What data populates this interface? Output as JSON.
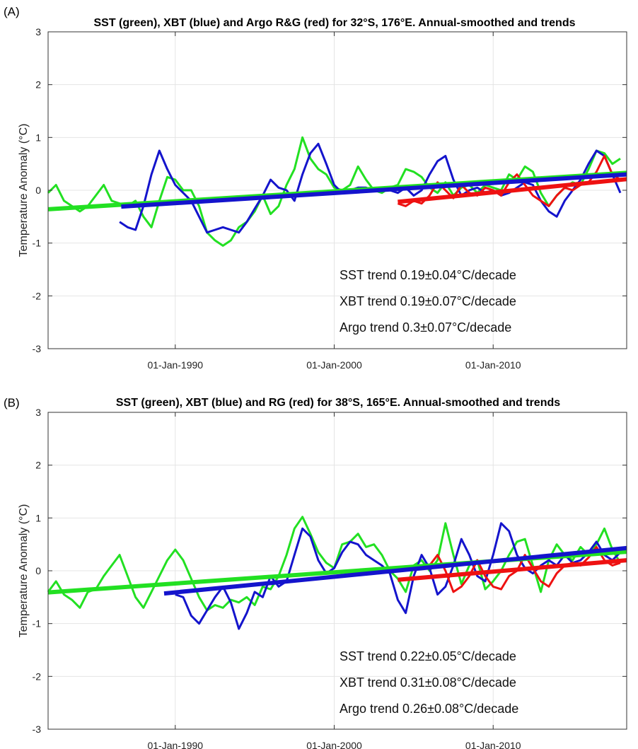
{
  "figure": {
    "background": "#ffffff"
  },
  "chart_data": [
    {
      "type": "line",
      "panel_label": "(A)",
      "title": "SST (green), XBT (blue) and Argo R&G (red) for 32°S, 176°E. Annual-smoothed and trends",
      "ylabel": "Temperature Anomaly (°C)",
      "xlabel": "",
      "xlim": [
        1982.0,
        2018.4
      ],
      "ylim": [
        -3,
        3
      ],
      "yticks": [
        -3,
        -2,
        -1,
        0,
        1,
        2,
        3
      ],
      "xticks": [
        {
          "year": 1990,
          "label": "01-Jan-1990"
        },
        {
          "year": 2000,
          "label": "01-Jan-2000"
        },
        {
          "year": 2010,
          "label": "01-Jan-2010"
        }
      ],
      "grid": true,
      "annotations": [
        "SST trend 0.19±0.04°C/decade",
        "XBT trend 0.19±0.07°C/decade",
        "Argo trend 0.3±0.07°C/decade"
      ],
      "series": [
        {
          "name": "SST",
          "color": "#22e022",
          "role": "anomaly",
          "x": [
            1982.0,
            1982.5,
            1983.0,
            1983.5,
            1984.0,
            1984.5,
            1985.0,
            1985.5,
            1986.0,
            1986.5,
            1987.0,
            1987.5,
            1988.0,
            1988.5,
            1989.0,
            1989.5,
            1990.0,
            1990.5,
            1991.0,
            1991.5,
            1992.0,
            1992.5,
            1993.0,
            1993.5,
            1994.0,
            1994.5,
            1995.0,
            1995.5,
            1996.0,
            1996.5,
            1997.0,
            1997.5,
            1998.0,
            1998.5,
            1999.0,
            1999.5,
            2000.0,
            2000.5,
            2001.0,
            2001.5,
            2002.0,
            2002.5,
            2003.0,
            2003.5,
            2004.0,
            2004.5,
            2005.0,
            2005.5,
            2006.0,
            2006.5,
            2007.0,
            2007.5,
            2008.0,
            2008.5,
            2009.0,
            2009.5,
            2010.0,
            2010.5,
            2011.0,
            2011.5,
            2012.0,
            2012.5,
            2013.0,
            2013.5,
            2014.0,
            2014.5,
            2015.0,
            2015.5,
            2016.0,
            2016.5,
            2017.0,
            2017.5,
            2018.0
          ],
          "y": [
            -0.05,
            0.1,
            -0.2,
            -0.3,
            -0.4,
            -0.3,
            -0.1,
            0.1,
            -0.2,
            -0.25,
            -0.3,
            -0.2,
            -0.5,
            -0.7,
            -0.2,
            0.25,
            0.2,
            0.0,
            0.0,
            -0.3,
            -0.8,
            -0.95,
            -1.05,
            -0.95,
            -0.7,
            -0.6,
            -0.4,
            -0.1,
            -0.45,
            -0.3,
            0.1,
            0.4,
            1.0,
            0.6,
            0.4,
            0.3,
            0.05,
            0.0,
            0.1,
            0.45,
            0.2,
            0.0,
            -0.05,
            0.05,
            0.1,
            0.4,
            0.35,
            0.25,
            0.05,
            -0.05,
            0.15,
            -0.1,
            0.05,
            0.1,
            -0.05,
            0.1,
            0.05,
            0.0,
            0.3,
            0.2,
            0.45,
            0.35,
            -0.05,
            -0.3,
            -0.1,
            0.05,
            0.15,
            0.1,
            0.4,
            0.75,
            0.7,
            0.5,
            0.6
          ]
        },
        {
          "name": "XBT",
          "color": "#1414cc",
          "role": "anomaly",
          "x": [
            1986.5,
            1987.0,
            1987.5,
            1988.0,
            1988.5,
            1989.0,
            1989.5,
            1990.0,
            1990.5,
            1991.0,
            1991.5,
            1992.0,
            1992.5,
            1993.0,
            1993.5,
            1994.0,
            1994.5,
            1995.0,
            1995.5,
            1996.0,
            1996.5,
            1997.0,
            1997.5,
            1998.0,
            1998.5,
            1999.0,
            1999.5,
            2000.0,
            2000.5,
            2001.0,
            2001.5,
            2002.0,
            2002.5,
            2003.0,
            2003.5,
            2004.0,
            2004.5,
            2005.0,
            2005.5,
            2006.0,
            2006.5,
            2007.0,
            2007.5,
            2008.0,
            2008.5,
            2009.0,
            2009.5,
            2010.0,
            2010.5,
            2011.0,
            2011.5,
            2012.0,
            2012.5,
            2013.0,
            2013.5,
            2014.0,
            2014.5,
            2015.0,
            2015.5,
            2016.0,
            2016.5,
            2017.0,
            2017.5,
            2018.0
          ],
          "y": [
            -0.6,
            -0.7,
            -0.75,
            -0.3,
            0.3,
            0.75,
            0.4,
            0.1,
            -0.05,
            -0.2,
            -0.5,
            -0.8,
            -0.75,
            -0.7,
            -0.75,
            -0.8,
            -0.6,
            -0.35,
            -0.1,
            0.2,
            0.05,
            0.0,
            -0.2,
            0.3,
            0.7,
            0.88,
            0.5,
            0.1,
            -0.05,
            0.0,
            0.05,
            0.05,
            0.0,
            0.05,
            0.0,
            -0.05,
            0.05,
            -0.1,
            0.0,
            0.3,
            0.55,
            0.65,
            0.2,
            -0.1,
            0.0,
            0.05,
            -0.05,
            0.0,
            -0.1,
            -0.05,
            0.05,
            0.15,
            0.1,
            -0.2,
            -0.4,
            -0.5,
            -0.2,
            0.0,
            0.2,
            0.5,
            0.75,
            0.65,
            0.3,
            -0.05
          ]
        },
        {
          "name": "Argo R&G",
          "color": "#ee1111",
          "role": "anomaly",
          "x": [
            2004.0,
            2004.5,
            2005.0,
            2005.5,
            2006.0,
            2006.5,
            2007.0,
            2007.5,
            2008.0,
            2008.5,
            2009.0,
            2009.5,
            2010.0,
            2010.5,
            2011.0,
            2011.5,
            2012.0,
            2012.5,
            2013.0,
            2013.5,
            2014.0,
            2014.5,
            2015.0,
            2015.5,
            2016.0,
            2016.5,
            2017.0,
            2017.5,
            2018.0
          ],
          "y": [
            -0.25,
            -0.3,
            -0.2,
            -0.25,
            -0.1,
            0.15,
            0.0,
            -0.15,
            0.1,
            -0.05,
            -0.1,
            0.05,
            0.0,
            -0.1,
            0.15,
            0.3,
            0.1,
            -0.1,
            -0.2,
            -0.3,
            -0.1,
            0.05,
            0.0,
            0.1,
            0.15,
            0.35,
            0.65,
            0.3,
            0.2
          ]
        },
        {
          "name": "SST trend",
          "color": "#22e022",
          "role": "trend",
          "x": [
            1982.0,
            2018.4
          ],
          "y": [
            -0.36,
            0.33
          ]
        },
        {
          "name": "XBT trend",
          "color": "#1414cc",
          "role": "trend",
          "x": [
            1986.6,
            2018.4
          ],
          "y": [
            -0.31,
            0.3
          ]
        },
        {
          "name": "Argo trend",
          "color": "#ee1111",
          "role": "trend",
          "x": [
            2004.0,
            2018.4
          ],
          "y": [
            -0.22,
            0.21
          ]
        }
      ]
    },
    {
      "type": "line",
      "panel_label": "(B)",
      "title": "SST (green), XBT (blue) and RG (red) for 38°S, 165°E. Annual-smoothed and trends",
      "ylabel": "Temperature Anomaly (°C)",
      "xlabel": "",
      "xlim": [
        1982.0,
        2018.4
      ],
      "ylim": [
        -3,
        3
      ],
      "yticks": [
        -3,
        -2,
        -1,
        0,
        1,
        2,
        3
      ],
      "xticks": [
        {
          "year": 1990,
          "label": "01-Jan-1990"
        },
        {
          "year": 2000,
          "label": "01-Jan-2000"
        },
        {
          "year": 2010,
          "label": "01-Jan-2010"
        }
      ],
      "grid": true,
      "annotations": [
        "SST trend 0.22±0.05°C/decade",
        "XBT trend 0.31±0.08°C/decade",
        "Argo trend 0.26±0.08°C/decade"
      ],
      "series": [
        {
          "name": "SST",
          "color": "#22e022",
          "role": "anomaly",
          "x": [
            1982.0,
            1982.5,
            1983.0,
            1983.5,
            1984.0,
            1984.5,
            1985.0,
            1985.5,
            1986.0,
            1986.5,
            1987.0,
            1987.5,
            1988.0,
            1988.5,
            1989.0,
            1989.5,
            1990.0,
            1990.5,
            1991.0,
            1991.5,
            1992.0,
            1992.5,
            1993.0,
            1993.5,
            1994.0,
            1994.5,
            1995.0,
            1995.5,
            1996.0,
            1996.5,
            1997.0,
            1997.5,
            1998.0,
            1998.5,
            1999.0,
            1999.5,
            2000.0,
            2000.5,
            2001.0,
            2001.5,
            2002.0,
            2002.5,
            2003.0,
            2003.5,
            2004.0,
            2004.5,
            2005.0,
            2005.5,
            2006.0,
            2006.5,
            2007.0,
            2007.5,
            2008.0,
            2008.5,
            2009.0,
            2009.5,
            2010.0,
            2010.5,
            2011.0,
            2011.5,
            2012.0,
            2012.5,
            2013.0,
            2013.5,
            2014.0,
            2014.5,
            2015.0,
            2015.5,
            2016.0,
            2016.5,
            2017.0,
            2017.5,
            2018.0
          ],
          "y": [
            -0.4,
            -0.2,
            -0.45,
            -0.55,
            -0.7,
            -0.4,
            -0.35,
            -0.1,
            0.1,
            0.3,
            -0.1,
            -0.5,
            -0.7,
            -0.4,
            -0.1,
            0.2,
            0.4,
            0.2,
            -0.15,
            -0.5,
            -0.75,
            -0.65,
            -0.7,
            -0.55,
            -0.6,
            -0.5,
            -0.65,
            -0.3,
            -0.35,
            -0.1,
            0.3,
            0.8,
            1.02,
            0.7,
            0.35,
            0.15,
            0.05,
            0.5,
            0.55,
            0.7,
            0.45,
            0.5,
            0.3,
            0.0,
            -0.15,
            -0.4,
            0.1,
            0.2,
            0.0,
            0.2,
            0.9,
            0.3,
            -0.25,
            0.1,
            0.2,
            -0.35,
            -0.2,
            0.0,
            0.3,
            0.55,
            0.6,
            0.1,
            -0.4,
            0.2,
            0.5,
            0.3,
            0.2,
            0.45,
            0.3,
            0.5,
            0.8,
            0.4,
            0.15
          ]
        },
        {
          "name": "XBT",
          "color": "#1414cc",
          "role": "anomaly",
          "x": [
            1990.0,
            1990.5,
            1991.0,
            1991.5,
            1992.0,
            1992.5,
            1993.0,
            1993.5,
            1994.0,
            1994.5,
            1995.0,
            1995.5,
            1996.0,
            1996.5,
            1997.0,
            1997.5,
            1998.0,
            1998.5,
            1999.0,
            1999.5,
            2000.0,
            2000.5,
            2001.0,
            2001.5,
            2002.0,
            2002.5,
            2003.0,
            2003.5,
            2004.0,
            2004.5,
            2005.0,
            2005.5,
            2006.0,
            2006.5,
            2007.0,
            2007.5,
            2008.0,
            2008.5,
            2009.0,
            2009.5,
            2010.0,
            2010.5,
            2011.0,
            2011.5,
            2012.0,
            2012.5,
            2013.0,
            2013.5,
            2014.0,
            2014.5,
            2015.0,
            2015.5,
            2016.0,
            2016.5,
            2017.0,
            2017.5,
            2018.0
          ],
          "y": [
            -0.45,
            -0.5,
            -0.85,
            -1.0,
            -0.75,
            -0.5,
            -0.3,
            -0.6,
            -1.1,
            -0.8,
            -0.4,
            -0.5,
            -0.1,
            -0.3,
            -0.2,
            0.3,
            0.8,
            0.65,
            0.2,
            -0.05,
            0.05,
            0.35,
            0.55,
            0.5,
            0.3,
            0.2,
            0.1,
            -0.05,
            -0.55,
            -0.8,
            -0.1,
            0.3,
            0.05,
            -0.45,
            -0.3,
            0.1,
            0.6,
            0.3,
            -0.1,
            -0.2,
            0.3,
            0.9,
            0.75,
            0.3,
            0.05,
            -0.05,
            0.1,
            0.2,
            0.1,
            0.3,
            0.15,
            0.2,
            0.35,
            0.55,
            0.3,
            0.2,
            0.35
          ]
        },
        {
          "name": "RG",
          "color": "#ee1111",
          "role": "anomaly",
          "x": [
            2006.0,
            2006.5,
            2007.0,
            2007.5,
            2008.0,
            2008.5,
            2009.0,
            2009.5,
            2010.0,
            2010.5,
            2011.0,
            2011.5,
            2012.0,
            2012.5,
            2013.0,
            2013.5,
            2014.0,
            2014.5,
            2015.0,
            2015.5,
            2016.0,
            2016.5,
            2017.0,
            2017.5,
            2018.0
          ],
          "y": [
            0.1,
            0.3,
            0.0,
            -0.4,
            -0.3,
            -0.1,
            0.2,
            -0.1,
            -0.3,
            -0.35,
            -0.1,
            0.0,
            0.3,
            0.05,
            -0.2,
            -0.3,
            -0.05,
            0.1,
            0.15,
            0.1,
            0.25,
            0.45,
            0.2,
            0.1,
            0.15
          ]
        },
        {
          "name": "SST trend",
          "color": "#22e022",
          "role": "trend",
          "x": [
            1982.0,
            2018.4
          ],
          "y": [
            -0.41,
            0.36
          ]
        },
        {
          "name": "XBT trend",
          "color": "#1414cc",
          "role": "trend",
          "x": [
            1989.3,
            2018.4
          ],
          "y": [
            -0.43,
            0.43
          ]
        },
        {
          "name": "Argo trend",
          "color": "#ee1111",
          "role": "trend",
          "x": [
            2004.0,
            2018.4
          ],
          "y": [
            -0.17,
            0.2
          ]
        }
      ]
    }
  ]
}
